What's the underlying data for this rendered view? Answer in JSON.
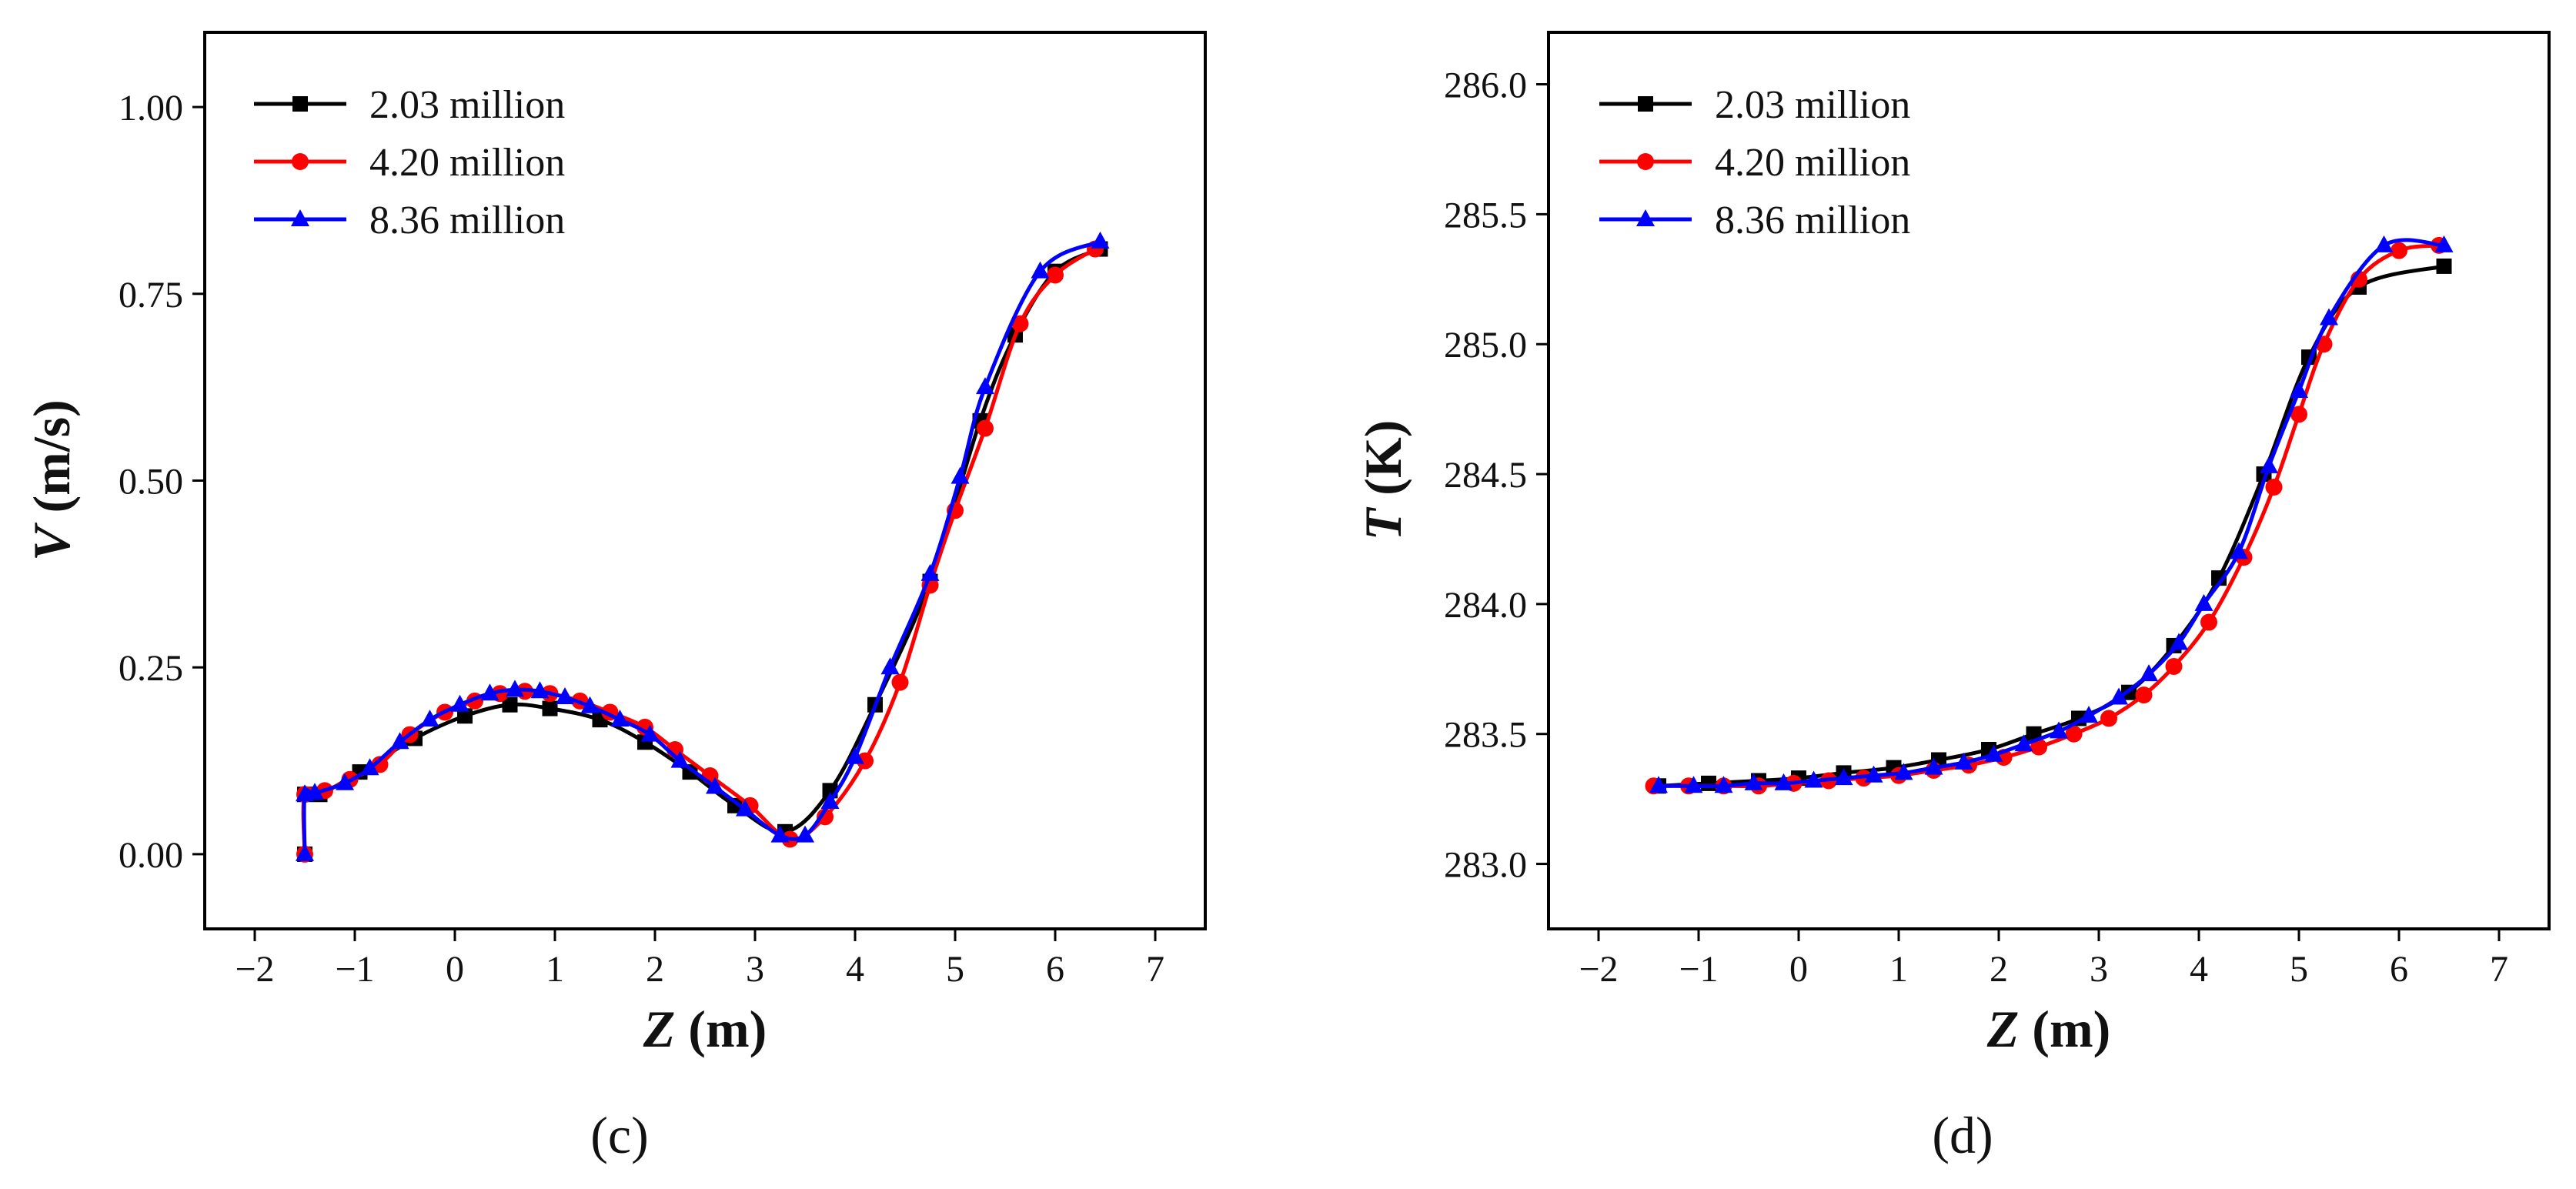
{
  "chart_data": [
    {
      "type": "line",
      "panel_label": "(c)",
      "xlabel_var": "Z",
      "xlabel_unit": " (m)",
      "ylabel_var": "V",
      "ylabel_unit": " (m/s)",
      "xlim": [
        -2.5,
        7.5
      ],
      "ylim": [
        -0.1,
        1.1
      ],
      "xticks": [
        -2,
        -1,
        0,
        1,
        2,
        3,
        4,
        5,
        6,
        7
      ],
      "xtick_labels": [
        "−2",
        "−1",
        "0",
        "1",
        "2",
        "3",
        "4",
        "5",
        "6",
        "7"
      ],
      "yticks": [
        0,
        0.25,
        0.5,
        0.75,
        1.0
      ],
      "ytick_labels": [
        "0.00",
        "0.25",
        "0.50",
        "0.75",
        "1.00"
      ],
      "legend": "top-left",
      "grid": false,
      "series": [
        {
          "name": "2.03 million",
          "color": "#000000",
          "marker": "square",
          "x": [
            -1.5,
            -1.5,
            -1.35,
            -0.95,
            -0.4,
            0.1,
            0.55,
            0.95,
            1.45,
            1.9,
            2.35,
            2.8,
            3.3,
            3.75,
            4.2,
            4.75,
            5.25,
            5.6,
            6.0,
            6.45
          ],
          "y": [
            0.0,
            0.08,
            0.08,
            0.11,
            0.155,
            0.185,
            0.2,
            0.195,
            0.18,
            0.15,
            0.11,
            0.065,
            0.03,
            0.085,
            0.2,
            0.365,
            0.58,
            0.695,
            0.78,
            0.81
          ]
        },
        {
          "name": "4.20 million",
          "color": "#ff0000",
          "marker": "circle",
          "x": [
            -1.5,
            -1.5,
            -1.3,
            -1.05,
            -0.75,
            -0.45,
            -0.1,
            0.2,
            0.45,
            0.7,
            0.95,
            1.25,
            1.55,
            1.9,
            2.2,
            2.55,
            2.95,
            3.35,
            3.7,
            4.1,
            4.45,
            4.75,
            5.0,
            5.3,
            5.65,
            6.0,
            6.4
          ],
          "y": [
            0.0,
            0.08,
            0.085,
            0.1,
            0.12,
            0.16,
            0.19,
            0.205,
            0.215,
            0.218,
            0.215,
            0.205,
            0.19,
            0.17,
            0.14,
            0.105,
            0.065,
            0.02,
            0.05,
            0.125,
            0.23,
            0.36,
            0.46,
            0.57,
            0.71,
            0.775,
            0.81
          ]
        },
        {
          "name": "8.36 million",
          "color": "#0000ff",
          "marker": "triangle",
          "x": [
            -1.5,
            -1.5,
            -1.4,
            -1.1,
            -0.85,
            -0.55,
            -0.25,
            0.05,
            0.35,
            0.6,
            0.85,
            1.1,
            1.35,
            1.65,
            1.95,
            2.25,
            2.6,
            2.9,
            3.25,
            3.5,
            3.75,
            4.0,
            4.35,
            4.75,
            5.05,
            5.3,
            5.85,
            6.45
          ],
          "y": [
            0.0,
            0.08,
            0.082,
            0.095,
            0.115,
            0.15,
            0.18,
            0.2,
            0.215,
            0.22,
            0.218,
            0.21,
            0.198,
            0.18,
            0.16,
            0.125,
            0.09,
            0.06,
            0.025,
            0.025,
            0.07,
            0.13,
            0.25,
            0.375,
            0.505,
            0.625,
            0.78,
            0.82
          ]
        }
      ]
    },
    {
      "type": "line",
      "panel_label": "(d)",
      "xlabel_var": "Z",
      "xlabel_unit": " (m)",
      "ylabel_var": "T",
      "ylabel_unit": " (K)",
      "xlim": [
        -2.5,
        7.5
      ],
      "ylim": [
        282.75,
        286.2
      ],
      "xticks": [
        -2,
        -1,
        0,
        1,
        2,
        3,
        4,
        5,
        6,
        7
      ],
      "xtick_labels": [
        "−2",
        "−1",
        "0",
        "1",
        "2",
        "3",
        "4",
        "5",
        "6",
        "7"
      ],
      "yticks": [
        283.0,
        283.5,
        284.0,
        284.5,
        285.0,
        285.5,
        286.0
      ],
      "ytick_labels": [
        "283.0",
        "283.5",
        "284.0",
        "284.5",
        "285.0",
        "285.5",
        "286.0"
      ],
      "legend": "top-left",
      "grid": false,
      "series": [
        {
          "name": "2.03 million",
          "color": "#000000",
          "marker": "square",
          "x": [
            -1.4,
            -0.9,
            -0.4,
            0.0,
            0.45,
            0.95,
            1.4,
            1.9,
            2.35,
            2.8,
            3.3,
            3.75,
            4.2,
            4.65,
            5.1,
            5.6,
            6.45
          ],
          "y": [
            283.3,
            283.31,
            283.32,
            283.33,
            283.35,
            283.37,
            283.4,
            283.44,
            283.5,
            283.56,
            283.66,
            283.84,
            284.1,
            284.5,
            284.95,
            285.22,
            285.3
          ]
        },
        {
          "name": "4.20 million",
          "color": "#ff0000",
          "marker": "circle",
          "x": [
            -1.45,
            -1.1,
            -0.75,
            -0.4,
            -0.05,
            0.3,
            0.65,
            1.0,
            1.35,
            1.7,
            2.05,
            2.4,
            2.75,
            3.1,
            3.45,
            3.75,
            4.1,
            4.45,
            4.75,
            5.0,
            5.25,
            5.6,
            6.0,
            6.4
          ],
          "y": [
            283.3,
            283.3,
            283.3,
            283.3,
            283.31,
            283.32,
            283.33,
            283.34,
            283.36,
            283.38,
            283.41,
            283.45,
            283.5,
            283.56,
            283.65,
            283.76,
            283.93,
            284.18,
            284.45,
            284.73,
            285.0,
            285.25,
            285.36,
            285.38
          ]
        },
        {
          "name": "8.36 million",
          "color": "#0000ff",
          "marker": "triangle",
          "x": [
            -1.4,
            -1.05,
            -0.75,
            -0.45,
            -0.15,
            0.15,
            0.45,
            0.75,
            1.05,
            1.35,
            1.65,
            1.95,
            2.25,
            2.6,
            2.9,
            3.2,
            3.5,
            3.8,
            4.05,
            4.4,
            4.7,
            5.0,
            5.3,
            5.85,
            6.45
          ],
          "y": [
            283.3,
            283.3,
            283.3,
            283.31,
            283.31,
            283.32,
            283.33,
            283.34,
            283.35,
            283.37,
            283.39,
            283.42,
            283.46,
            283.51,
            283.57,
            283.64,
            283.73,
            283.85,
            284.0,
            284.2,
            284.53,
            284.82,
            285.1,
            285.38,
            285.38
          ]
        }
      ]
    }
  ]
}
